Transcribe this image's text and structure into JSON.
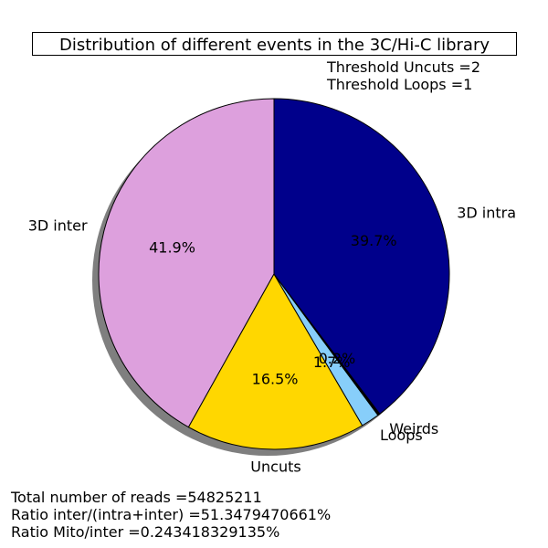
{
  "chart_data": {
    "type": "pie",
    "title": "Distribution of different events in the 3C/Hi-C library",
    "slices": [
      {
        "label": "3D inter",
        "value": 41.9,
        "pct_label": "41.9%",
        "color": "#dda0dd"
      },
      {
        "label": "Uncuts",
        "value": 16.5,
        "pct_label": "16.5%",
        "color": "#ffd700"
      },
      {
        "label": "Loops",
        "value": 1.7,
        "pct_label": "1.7%",
        "color": "#87cefa"
      },
      {
        "label": "Weirds",
        "value": 0.2,
        "pct_label": "0.2%",
        "color": "#000000"
      },
      {
        "label": "3D intra",
        "value": 39.7,
        "pct_label": "39.7%",
        "color": "#00008b"
      }
    ],
    "start_angle_deg": 90,
    "direction": "counterclockwise",
    "shadow": true
  },
  "annotations": {
    "threshold_uncuts": "Threshold Uncuts =2",
    "threshold_loops": "Threshold Loops =1"
  },
  "footer": {
    "total_reads": "Total number of reads =54825211",
    "ratio_inter": "Ratio inter/(intra+inter) =51.3479470661%",
    "ratio_mito": "Ratio Mito/inter =0.243418329135%"
  }
}
